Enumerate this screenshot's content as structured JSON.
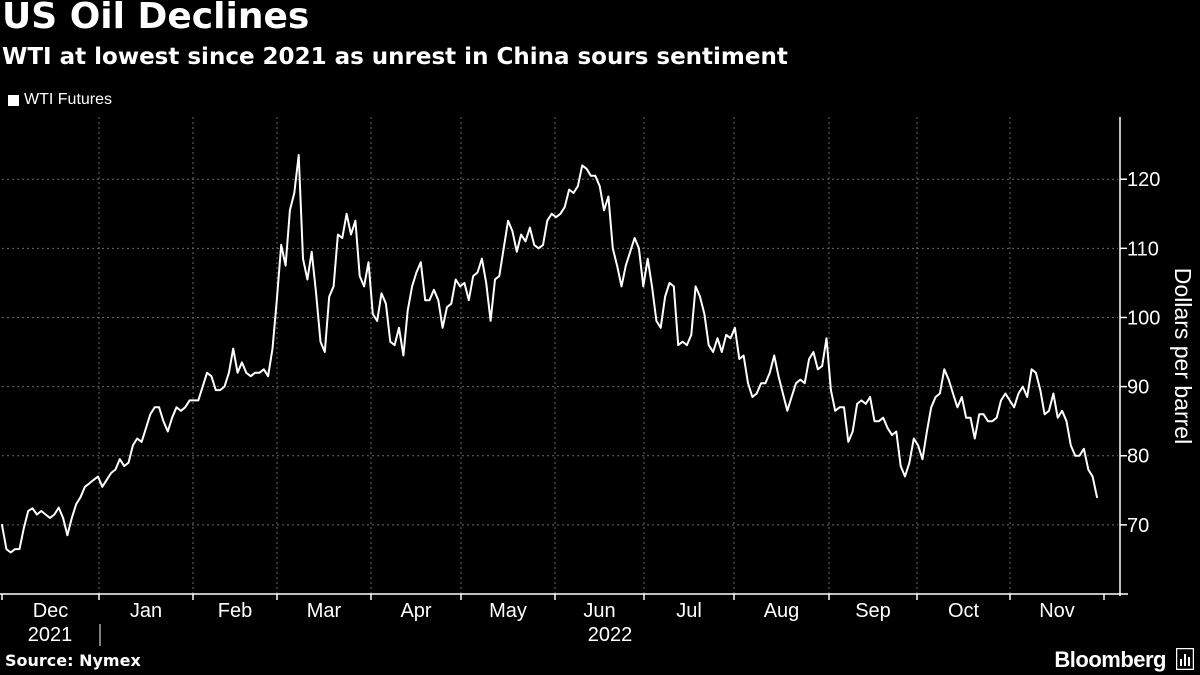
{
  "chart_data": {
    "type": "line",
    "title": "US Oil Declines",
    "subtitle": "WTI at lowest since 2021 as unrest in China sours sentiment",
    "ylabel": "Dollars per barrel",
    "ylim": [
      60,
      129
    ],
    "yticks": [
      70,
      80,
      90,
      100,
      110,
      120
    ],
    "grid": true,
    "legend_position": "top-left",
    "months": [
      "Dec",
      "Jan",
      "Feb",
      "Mar",
      "Apr",
      "May",
      "Jun",
      "Jul",
      "Aug",
      "Sep",
      "Oct",
      "Nov"
    ],
    "years": [
      "2021",
      "2022"
    ],
    "series": [
      {
        "name": "WTI Futures",
        "x_start": "2021-12-01",
        "values": [
          70.0,
          66.5,
          66.0,
          66.5,
          66.5,
          69.5,
          72.0,
          72.4,
          71.5,
          72.0,
          71.5,
          71.0,
          71.5,
          72.5,
          71.0,
          68.5,
          71.0,
          73.0,
          74.0,
          75.5,
          76.0,
          76.5,
          77.0,
          75.5,
          76.5,
          77.5,
          78.0,
          79.5,
          78.5,
          79.0,
          81.5,
          82.5,
          82.0,
          84.0,
          86.0,
          87.0,
          87.0,
          85.0,
          83.5,
          85.5,
          87.0,
          86.5,
          87.0,
          88.0,
          88.0,
          88.0,
          90.0,
          92.0,
          91.5,
          89.5,
          89.5,
          90.0,
          92.0,
          95.5,
          92.0,
          93.5,
          92.0,
          91.5,
          92.0,
          92.0,
          92.5,
          91.5,
          95.5,
          102.5,
          110.5,
          107.5,
          115.5,
          118.0,
          123.5,
          108.5,
          105.5,
          109.5,
          103.5,
          96.5,
          95.0,
          103.0,
          104.5,
          112.0,
          111.5,
          115.0,
          112.0,
          114.0,
          106.0,
          104.5,
          108.0,
          100.5,
          99.5,
          103.5,
          102.0,
          96.5,
          96.0,
          98.5,
          94.5,
          101.0,
          104.5,
          106.5,
          108.0,
          102.5,
          102.5,
          104.0,
          102.5,
          98.5,
          101.5,
          102.0,
          105.5,
          104.5,
          105.0,
          102.5,
          106.0,
          106.5,
          108.5,
          105.0,
          99.5,
          105.5,
          106.0,
          110.0,
          114.0,
          112.5,
          109.5,
          112.0,
          111.0,
          113.0,
          110.5,
          110.0,
          110.5,
          114.0,
          115.0,
          114.5,
          115.0,
          116.0,
          118.5,
          118.0,
          119.0,
          122.0,
          121.5,
          120.5,
          120.5,
          119.0,
          115.5,
          117.5,
          110.0,
          107.5,
          104.5,
          107.5,
          109.5,
          111.5,
          110.0,
          104.5,
          108.5,
          104.5,
          99.5,
          98.5,
          103.0,
          105.0,
          104.5,
          96.0,
          96.5,
          96.0,
          97.5,
          104.5,
          103.0,
          100.5,
          96.0,
          95.0,
          97.0,
          95.0,
          97.5,
          97.0,
          98.5,
          94.0,
          94.5,
          90.5,
          88.5,
          89.0,
          90.5,
          90.5,
          92.0,
          94.5,
          91.5,
          89.0,
          86.5,
          88.5,
          90.5,
          91.0,
          90.5,
          94.0,
          95.0,
          92.5,
          93.0,
          97.0,
          89.5,
          86.5,
          87.0,
          87.0,
          82.0,
          83.5,
          87.5,
          88.0,
          87.5,
          88.5,
          85.0,
          85.0,
          85.5,
          84.0,
          83.0,
          83.5,
          78.5,
          77.0,
          79.0,
          82.5,
          81.5,
          79.5,
          83.5,
          87.0,
          88.5,
          89.0,
          92.5,
          91.0,
          89.0,
          87.0,
          88.5,
          85.5,
          85.5,
          82.5,
          86.0,
          86.0,
          85.0,
          85.0,
          85.5,
          88.0,
          89.0,
          88.0,
          87.0,
          89.0,
          90.0,
          88.5,
          92.5,
          92.0,
          89.5,
          86.0,
          86.5,
          89.0,
          85.5,
          86.5,
          85.0,
          81.5,
          80.0,
          80.0,
          81.0,
          78.0,
          77.0,
          74.0
        ]
      }
    ]
  },
  "legend": {
    "label": "WTI Futures"
  },
  "footer": {
    "source": "Source: Nymex",
    "brand": "Bloomberg"
  }
}
